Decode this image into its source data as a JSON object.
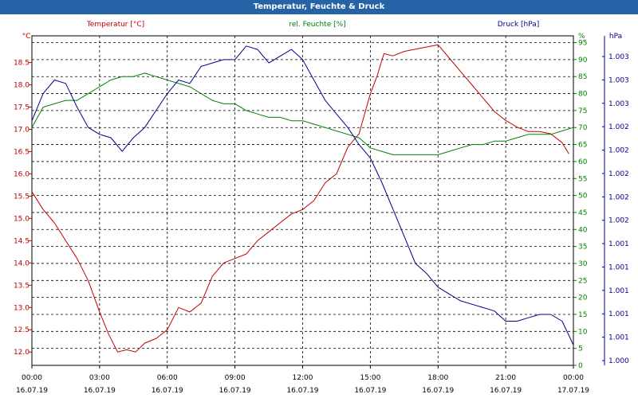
{
  "window": {
    "title": "Temperatur, Feuchte & Druck"
  },
  "chart_data": {
    "type": "line",
    "grid": true,
    "series": [
      {
        "name": "Temperatur [°C]",
        "unit": "°C",
        "axis": "left",
        "color": "#c00000",
        "ylim": [
          11.7,
          19.1
        ],
        "ticks": [
          "12.0",
          "12.5",
          "13.0",
          "13.5",
          "14.0",
          "14.5",
          "15.0",
          "15.5",
          "16.0",
          "16.5",
          "17.0",
          "17.5",
          "18.0",
          "18.5"
        ],
        "x_hours": [
          0,
          0.5,
          1,
          1.5,
          2,
          2.5,
          3,
          3.4,
          3.8,
          4.2,
          4.6,
          5,
          5.5,
          6,
          6.5,
          7,
          7.5,
          8,
          8.5,
          9,
          9.5,
          10,
          10.5,
          11,
          11.5,
          12,
          12.5,
          13,
          13.5,
          14,
          14.5,
          15,
          15.3,
          15.6,
          16,
          16.5,
          17,
          17.5,
          18,
          18.5,
          19,
          19.5,
          20,
          20.5,
          21,
          21.5,
          22,
          22.5,
          23,
          23.5,
          23.8
        ],
        "values": [
          15.6,
          15.2,
          14.9,
          14.5,
          14.1,
          13.6,
          12.9,
          12.4,
          12.0,
          12.05,
          12.0,
          12.2,
          12.3,
          12.5,
          13.0,
          12.9,
          13.1,
          13.7,
          14.0,
          14.1,
          14.2,
          14.5,
          14.7,
          14.9,
          15.1,
          15.2,
          15.4,
          15.8,
          16.0,
          16.6,
          16.9,
          17.8,
          18.2,
          18.7,
          18.65,
          18.75,
          18.8,
          18.85,
          18.9,
          18.6,
          18.3,
          18.0,
          17.7,
          17.4,
          17.2,
          17.05,
          16.95,
          16.95,
          16.9,
          16.7,
          16.45
        ]
      },
      {
        "name": "rel. Feuchte [%]",
        "unit": "%",
        "axis": "right",
        "color": "#008000",
        "ylim": [
          0,
          97
        ],
        "ticks": [
          "0",
          "5",
          "10",
          "15",
          "20",
          "25",
          "30",
          "35",
          "40",
          "45",
          "50",
          "55",
          "60",
          "65",
          "70",
          "75",
          "80",
          "85",
          "90",
          "95"
        ],
        "top_unit_label": "%",
        "x_hours": [
          0,
          0.5,
          1,
          1.5,
          2,
          2.5,
          3,
          3.5,
          4,
          4.5,
          5,
          5.5,
          6,
          6.5,
          7,
          7.5,
          8,
          8.5,
          9,
          9.5,
          10,
          10.5,
          11,
          11.5,
          12,
          12.5,
          13,
          13.5,
          14,
          14.5,
          15,
          15.5,
          16,
          16.5,
          17,
          17.5,
          18,
          18.5,
          19,
          19.5,
          20,
          20.5,
          21,
          21.5,
          22,
          22.5,
          23,
          23.5,
          24
        ],
        "values": [
          70,
          76,
          77,
          78,
          78,
          80,
          82,
          84,
          85,
          85,
          86,
          85,
          84,
          83,
          82,
          80,
          78,
          77,
          77,
          75,
          74,
          73,
          73,
          72,
          72,
          71,
          70,
          69,
          68,
          67,
          64,
          63,
          62,
          62,
          62,
          62,
          62,
          63,
          64,
          65,
          65,
          66,
          66,
          67,
          68,
          68,
          68,
          69,
          70
        ]
      },
      {
        "name": "Druck [hPa]",
        "unit": "hPa",
        "axis": "right-outer",
        "color": "#00008b",
        "ylim": [
          0,
          97
        ],
        "ticks": [
          "1.000",
          "1.001",
          "1.001",
          "1.001",
          "1.001",
          "1.001",
          "1.002",
          "1.002",
          "1.002",
          "1.002",
          "1.002",
          "1.003",
          "1.003",
          "1.003"
        ],
        "x_hours": [
          0,
          0.5,
          1,
          1.5,
          2,
          2.5,
          3,
          3.5,
          4,
          4.5,
          5,
          5.5,
          6,
          6.5,
          7,
          7.5,
          8,
          8.5,
          9,
          9.5,
          10,
          10.5,
          11,
          11.5,
          12,
          12.5,
          13,
          13.5,
          14,
          14.5,
          15,
          15.5,
          16,
          16.5,
          17,
          17.5,
          18,
          18.5,
          19,
          19.5,
          20,
          20.5,
          21,
          21.5,
          22,
          22.5,
          23,
          23.5,
          24
        ],
        "values": [
          72,
          80,
          84,
          83,
          76,
          70,
          68,
          67,
          63,
          67,
          70,
          75,
          80,
          84,
          83,
          88,
          89,
          90,
          90,
          94,
          93,
          89,
          91,
          93,
          90,
          84,
          78,
          74,
          70,
          65,
          61,
          54,
          46,
          38,
          30,
          27,
          23,
          21,
          19,
          18,
          17,
          16,
          13,
          13,
          14,
          15,
          15,
          13,
          6
        ]
      }
    ],
    "x_ticks": [
      {
        "time": "00:00",
        "date": "16.07.19"
      },
      {
        "time": "03:00",
        "date": "16.07.19"
      },
      {
        "time": "06:00",
        "date": "16.07.19"
      },
      {
        "time": "09:00",
        "date": "16.07.19"
      },
      {
        "time": "12:00",
        "date": "16.07.19"
      },
      {
        "time": "15:00",
        "date": "16.07.19"
      },
      {
        "time": "18:00",
        "date": "16.07.19"
      },
      {
        "time": "21:00",
        "date": "16.07.19"
      },
      {
        "time": "00:00",
        "date": "17.07.19"
      }
    ],
    "xlim_hours": [
      0,
      24
    ]
  }
}
